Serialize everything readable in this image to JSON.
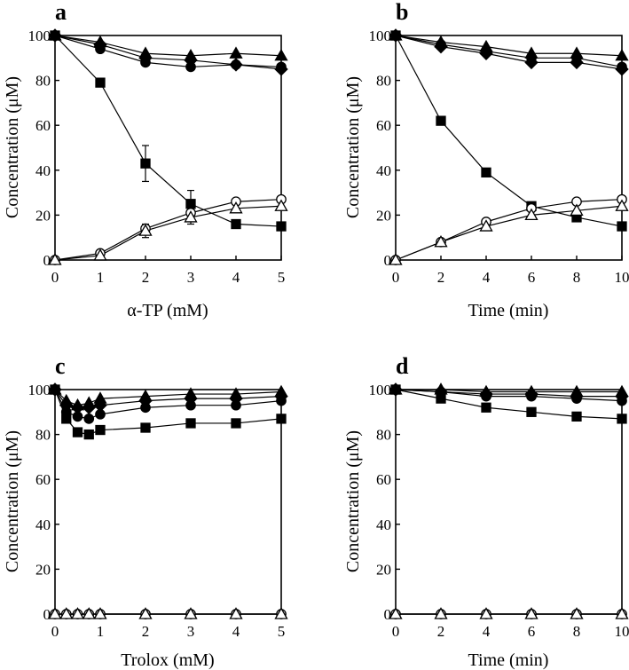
{
  "chart_data": [
    {
      "panel": "a",
      "type": "line",
      "xlabel": "α-TP (mM)",
      "ylabel": "Concentration (μM)",
      "xlim": [
        0,
        5
      ],
      "ylim": [
        0,
        100
      ],
      "xticks": [
        0,
        1,
        2,
        3,
        4,
        5
      ],
      "yticks": [
        0,
        20,
        40,
        60,
        80,
        100
      ],
      "series": [
        {
          "name": "filled triangle",
          "marker": "triangle",
          "filled": true,
          "x": [
            0,
            1,
            2,
            3,
            4,
            5
          ],
          "y": [
            100,
            97,
            92,
            91,
            92,
            91
          ]
        },
        {
          "name": "filled circle",
          "marker": "circle",
          "filled": true,
          "x": [
            0,
            1,
            2,
            3,
            4,
            5
          ],
          "y": [
            100,
            94,
            88,
            86,
            87,
            86
          ]
        },
        {
          "name": "filled diamond",
          "marker": "diamond",
          "filled": true,
          "x": [
            0,
            1,
            2,
            3,
            4,
            5
          ],
          "y": [
            100,
            96,
            90,
            89,
            87,
            85
          ]
        },
        {
          "name": "filled square",
          "marker": "square",
          "filled": true,
          "x": [
            0,
            1,
            2,
            3,
            4,
            5
          ],
          "y": [
            100,
            79,
            43,
            25,
            16,
            15
          ],
          "err": [
            0,
            0,
            8,
            6,
            0,
            0
          ]
        },
        {
          "name": "open circle",
          "marker": "circle",
          "filled": false,
          "x": [
            0,
            1,
            2,
            3,
            4,
            5
          ],
          "y": [
            0,
            3,
            14,
            21,
            26,
            27
          ]
        },
        {
          "name": "open triangle",
          "marker": "triangle",
          "filled": false,
          "x": [
            0,
            1,
            2,
            3,
            4,
            5
          ],
          "y": [
            0,
            2,
            13,
            19,
            23,
            24
          ],
          "err": [
            0,
            0,
            3,
            3,
            0,
            0
          ]
        }
      ]
    },
    {
      "panel": "b",
      "type": "line",
      "xlabel": "Time (min)",
      "ylabel": "Concentration (μM)",
      "xlim": [
        0,
        10
      ],
      "ylim": [
        0,
        100
      ],
      "xticks": [
        0,
        2,
        4,
        6,
        8,
        10
      ],
      "yticks": [
        0,
        20,
        40,
        60,
        80,
        100
      ],
      "series": [
        {
          "name": "filled triangle",
          "marker": "triangle",
          "filled": true,
          "x": [
            0,
            2,
            4,
            6,
            8,
            10
          ],
          "y": [
            100,
            97,
            95,
            92,
            92,
            91
          ]
        },
        {
          "name": "filled circle",
          "marker": "circle",
          "filled": true,
          "x": [
            0,
            2,
            4,
            6,
            8,
            10
          ],
          "y": [
            100,
            96,
            93,
            90,
            90,
            86
          ]
        },
        {
          "name": "filled diamond",
          "marker": "diamond",
          "filled": true,
          "x": [
            0,
            2,
            4,
            6,
            8,
            10
          ],
          "y": [
            100,
            95,
            92,
            88,
            88,
            85
          ]
        },
        {
          "name": "filled square",
          "marker": "square",
          "filled": true,
          "x": [
            0,
            2,
            4,
            6,
            8,
            10
          ],
          "y": [
            100,
            62,
            39,
            24,
            19,
            15
          ]
        },
        {
          "name": "open circle",
          "marker": "circle",
          "filled": false,
          "x": [
            0,
            2,
            4,
            6,
            8,
            10
          ],
          "y": [
            0,
            8,
            17,
            23,
            26,
            27
          ]
        },
        {
          "name": "open triangle",
          "marker": "triangle",
          "filled": false,
          "x": [
            0,
            2,
            4,
            6,
            8,
            10
          ],
          "y": [
            0,
            8,
            15,
            20,
            22,
            24
          ]
        }
      ]
    },
    {
      "panel": "c",
      "type": "line",
      "xlabel": "Trolox (mM)",
      "ylabel": "Concentration (μM)",
      "xlim": [
        0,
        5
      ],
      "ylim": [
        0,
        100
      ],
      "xticks": [
        0,
        1,
        2,
        3,
        4,
        5
      ],
      "yticks": [
        0,
        20,
        40,
        60,
        80,
        100
      ],
      "series": [
        {
          "name": "filled triangle",
          "marker": "triangle",
          "filled": true,
          "x": [
            0,
            0.25,
            0.5,
            0.75,
            1,
            2,
            3,
            4,
            5
          ],
          "y": [
            100,
            95,
            93,
            94,
            96,
            97,
            98,
            98,
            99
          ]
        },
        {
          "name": "filled diamond",
          "marker": "diamond",
          "filled": true,
          "x": [
            0,
            0.25,
            0.5,
            0.75,
            1,
            2,
            3,
            4,
            5
          ],
          "y": [
            100,
            93,
            92,
            92,
            93,
            95,
            96,
            96,
            97
          ]
        },
        {
          "name": "filled circle",
          "marker": "circle",
          "filled": true,
          "x": [
            0,
            0.25,
            0.5,
            0.75,
            1,
            2,
            3,
            4,
            5
          ],
          "y": [
            100,
            90,
            88,
            87,
            89,
            92,
            93,
            93,
            95
          ]
        },
        {
          "name": "filled square",
          "marker": "square",
          "filled": true,
          "x": [
            0,
            0.25,
            0.5,
            0.75,
            1,
            2,
            3,
            4,
            5
          ],
          "y": [
            100,
            87,
            81,
            80,
            82,
            83,
            85,
            85,
            87
          ]
        },
        {
          "name": "open circle",
          "marker": "circle",
          "filled": false,
          "x": [
            0,
            0.25,
            0.5,
            0.75,
            1,
            2,
            3,
            4,
            5
          ],
          "y": [
            0,
            0,
            0,
            0,
            0,
            0,
            0,
            0,
            0
          ]
        },
        {
          "name": "open triangle",
          "marker": "triangle",
          "filled": false,
          "x": [
            0,
            0.25,
            0.5,
            0.75,
            1,
            2,
            3,
            4,
            5
          ],
          "y": [
            0,
            0,
            0,
            0,
            0,
            0,
            0,
            0,
            0
          ]
        }
      ]
    },
    {
      "panel": "d",
      "type": "line",
      "xlabel": "Time (min)",
      "ylabel": "Concentration (μM)",
      "xlim": [
        0,
        10
      ],
      "ylim": [
        0,
        100
      ],
      "xticks": [
        0,
        2,
        4,
        6,
        8,
        10
      ],
      "yticks": [
        0,
        20,
        40,
        60,
        80,
        100
      ],
      "series": [
        {
          "name": "filled triangle",
          "marker": "triangle",
          "filled": true,
          "x": [
            0,
            2,
            4,
            6,
            8,
            10
          ],
          "y": [
            100,
            100,
            99,
            99,
            99,
            99
          ]
        },
        {
          "name": "filled diamond",
          "marker": "diamond",
          "filled": true,
          "x": [
            0,
            2,
            4,
            6,
            8,
            10
          ],
          "y": [
            100,
            99,
            98,
            98,
            97,
            97
          ]
        },
        {
          "name": "filled circle",
          "marker": "circle",
          "filled": true,
          "x": [
            0,
            2,
            4,
            6,
            8,
            10
          ],
          "y": [
            100,
            99,
            97,
            97,
            96,
            95
          ]
        },
        {
          "name": "filled square",
          "marker": "square",
          "filled": true,
          "x": [
            0,
            2,
            4,
            6,
            8,
            10
          ],
          "y": [
            100,
            96,
            92,
            90,
            88,
            87
          ]
        },
        {
          "name": "open circle",
          "marker": "circle",
          "filled": false,
          "x": [
            0,
            2,
            4,
            6,
            8,
            10
          ],
          "y": [
            0,
            0,
            0,
            0,
            0,
            0
          ]
        },
        {
          "name": "open triangle",
          "marker": "triangle",
          "filled": false,
          "x": [
            0,
            2,
            4,
            6,
            8,
            10
          ],
          "y": [
            0,
            0,
            0,
            0,
            0,
            0
          ]
        }
      ]
    }
  ]
}
